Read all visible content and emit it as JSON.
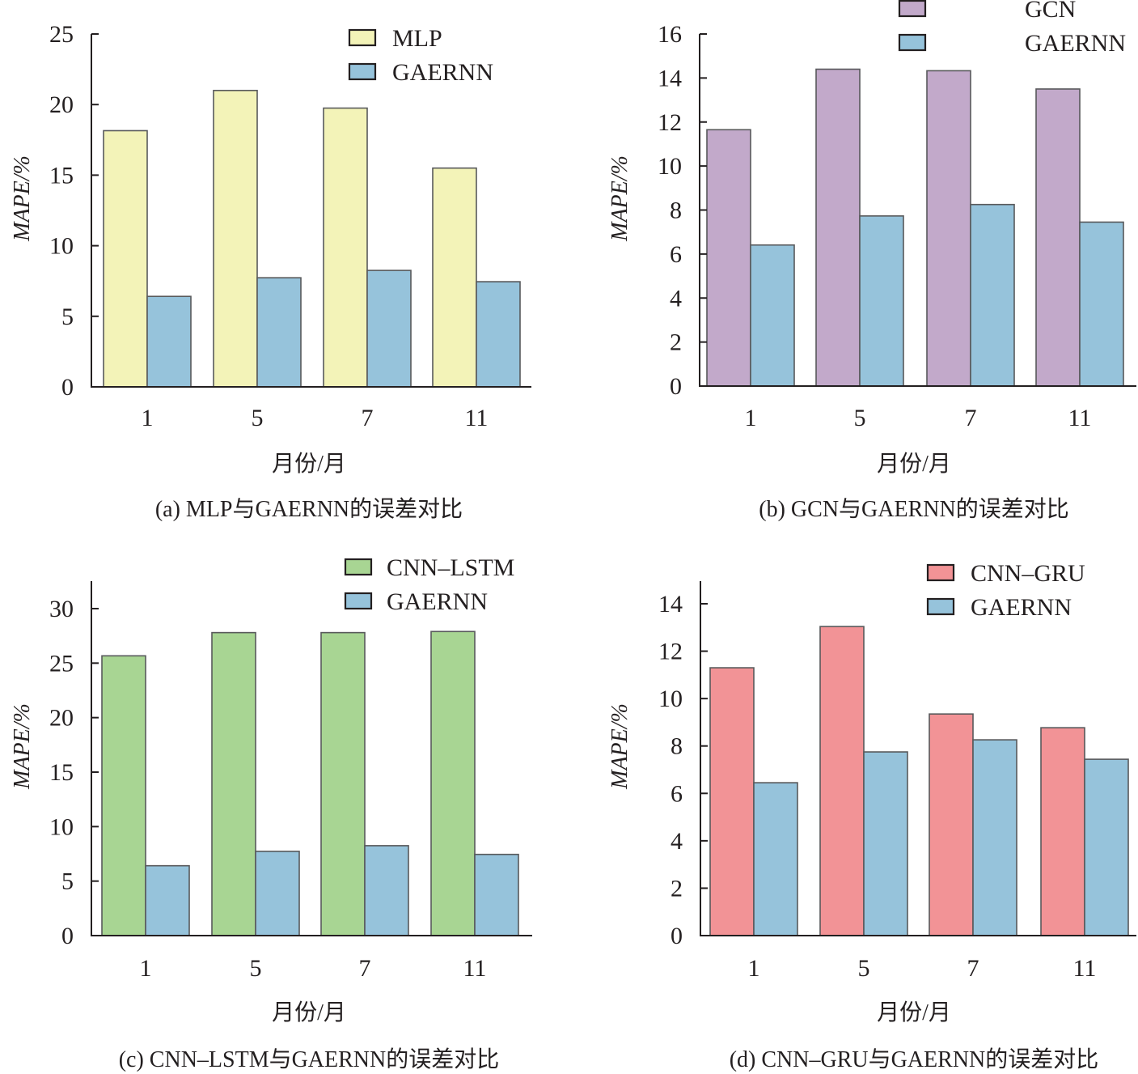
{
  "chart_data": [
    {
      "id": "a",
      "type": "bar",
      "caption": "(a) MLP与GAERNN的误差对比",
      "xlabel": "月份/月",
      "ylabel": "MAPE/%",
      "categories": [
        "1",
        "5",
        "7",
        "11"
      ],
      "ylim": [
        0,
        25
      ],
      "yticks": [
        0,
        5,
        10,
        15,
        20,
        25
      ],
      "grid": false,
      "legend_position": "top-right",
      "series": [
        {
          "name": "MLP",
          "color": "#f3f3b8",
          "values": [
            18.15,
            21.0,
            19.75,
            15.5
          ]
        },
        {
          "name": "GAERNN",
          "color": "#96c3db",
          "values": [
            6.41,
            7.73,
            8.25,
            7.45
          ]
        }
      ]
    },
    {
      "id": "b",
      "type": "bar",
      "caption": "(b) GCN与GAERNN的误差对比",
      "xlabel": "月份/月",
      "ylabel": "MAPE/%",
      "categories": [
        "1",
        "5",
        "7",
        "11"
      ],
      "ylim": [
        0,
        16
      ],
      "yticks": [
        0,
        2,
        4,
        6,
        8,
        10,
        12,
        14,
        16
      ],
      "grid": false,
      "legend_position": "top-right",
      "series": [
        {
          "name": "GCN",
          "color": "#c2a9ca",
          "values": [
            11.65,
            14.4,
            14.33,
            13.5
          ]
        },
        {
          "name": "GAERNN",
          "color": "#96c3db",
          "values": [
            6.41,
            7.73,
            8.25,
            7.45
          ]
        }
      ]
    },
    {
      "id": "c",
      "type": "bar",
      "caption": "(c) CNN–LSTM与GAERNN的误差对比",
      "xlabel": "月份/月",
      "ylabel": "MAPE/%",
      "categories": [
        "1",
        "5",
        "7",
        "11"
      ],
      "ylim": [
        0,
        32.5
      ],
      "yticks": [
        0,
        5,
        10,
        15,
        20,
        25,
        30
      ],
      "grid": false,
      "legend_position": "top-right",
      "series": [
        {
          "name": "CNN–LSTM",
          "color": "#a8d593",
          "values": [
            25.67,
            27.8,
            27.8,
            27.9
          ]
        },
        {
          "name": "GAERNN",
          "color": "#96c3db",
          "values": [
            6.41,
            7.73,
            8.25,
            7.45
          ]
        }
      ]
    },
    {
      "id": "d",
      "type": "bar",
      "caption": "(d) CNN–GRU与GAERNN的误差对比",
      "xlabel": "月份/月",
      "ylabel": "MAPE/%",
      "categories": [
        "1",
        "5",
        "7",
        "11"
      ],
      "ylim": [
        0,
        15
      ],
      "yticks": [
        0,
        2,
        4,
        6,
        8,
        10,
        12,
        14
      ],
      "grid": false,
      "legend_position": "top-right",
      "series": [
        {
          "name": "CNN–GRU",
          "color": "#f29396",
          "values": [
            11.3,
            13.04,
            9.35,
            8.77
          ]
        },
        {
          "name": "GAERNN",
          "color": "#96c3db",
          "values": [
            6.45,
            7.75,
            8.26,
            7.44
          ]
        }
      ]
    }
  ]
}
